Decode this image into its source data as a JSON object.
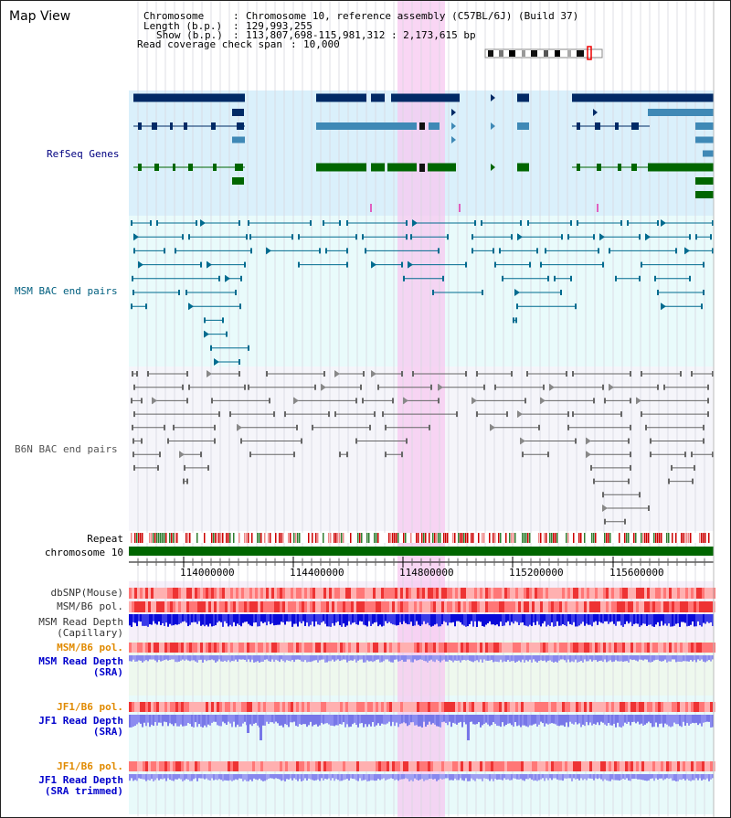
{
  "view_title": "Map View",
  "info": {
    "chromosome_label": "Chromosome",
    "chromosome_value": "Chromosome 10, reference assembly (C57BL/6J) (Build 37)",
    "length_label": "Length (b.p.)",
    "length_value": "129,993,255",
    "show_label": "Show (b.p.)",
    "show_value": "113,807,698-115,981,312 : 2,173,615 bp",
    "coverage_label": "Read coverage check span",
    "coverage_value": "10,000"
  },
  "tracks": {
    "refseq": "RefSeq Genes",
    "msm_bac": "MSM BAC end pairs",
    "b6n_bac": "B6N BAC end pairs",
    "repeat": "Repeat",
    "chromosome": "chromosome 10",
    "dbsnp": "dbSNP(Mouse)",
    "msm_b6_pol_1": "MSM/B6 pol.",
    "msm_depth_cap_1": "MSM Read Depth",
    "msm_depth_cap_2": "(Capillary)",
    "msm_b6_pol_2": "MSM/B6 pol.",
    "msm_depth_sra_1": "MSM Read Depth",
    "msm_depth_sra_2": "(SRA)",
    "jf1_pol_1": "JF1/B6 pol.",
    "jf1_depth_sra_1": "JF1 Read Depth",
    "jf1_depth_sra_2": "(SRA)",
    "jf1_pol_2": "JF1/B6 pol.",
    "jf1_depth_trim_1": "JF1 Read Depth",
    "jf1_depth_trim_2": "(SRA trimmed)"
  },
  "ruler": {
    "ticks": [
      "114000000",
      "114400000",
      "114800000",
      "115200000",
      "115600000"
    ]
  },
  "colors": {
    "refseq_dark": "#002a66",
    "refseq_mid": "#3f89b6",
    "refseq_green": "#006600",
    "msm_bac": "#006b8f",
    "b6n_bac": "#666666",
    "highlight": "#f7c8f0",
    "refseq_bg": "#daf0fb",
    "msm_bg": "#e9fbfb",
    "b6n_bg": "#f5f5fa",
    "pol_dark": "#ee3333",
    "pol_light": "#ffb0b0",
    "depth_dark": "#0b0bdd",
    "depth_light": "#8888ee",
    "label_refseq": "#000080",
    "label_msm": "#005f7f",
    "label_pol_orange": "#e08a00",
    "label_depth_blue": "#0000cc"
  }
}
